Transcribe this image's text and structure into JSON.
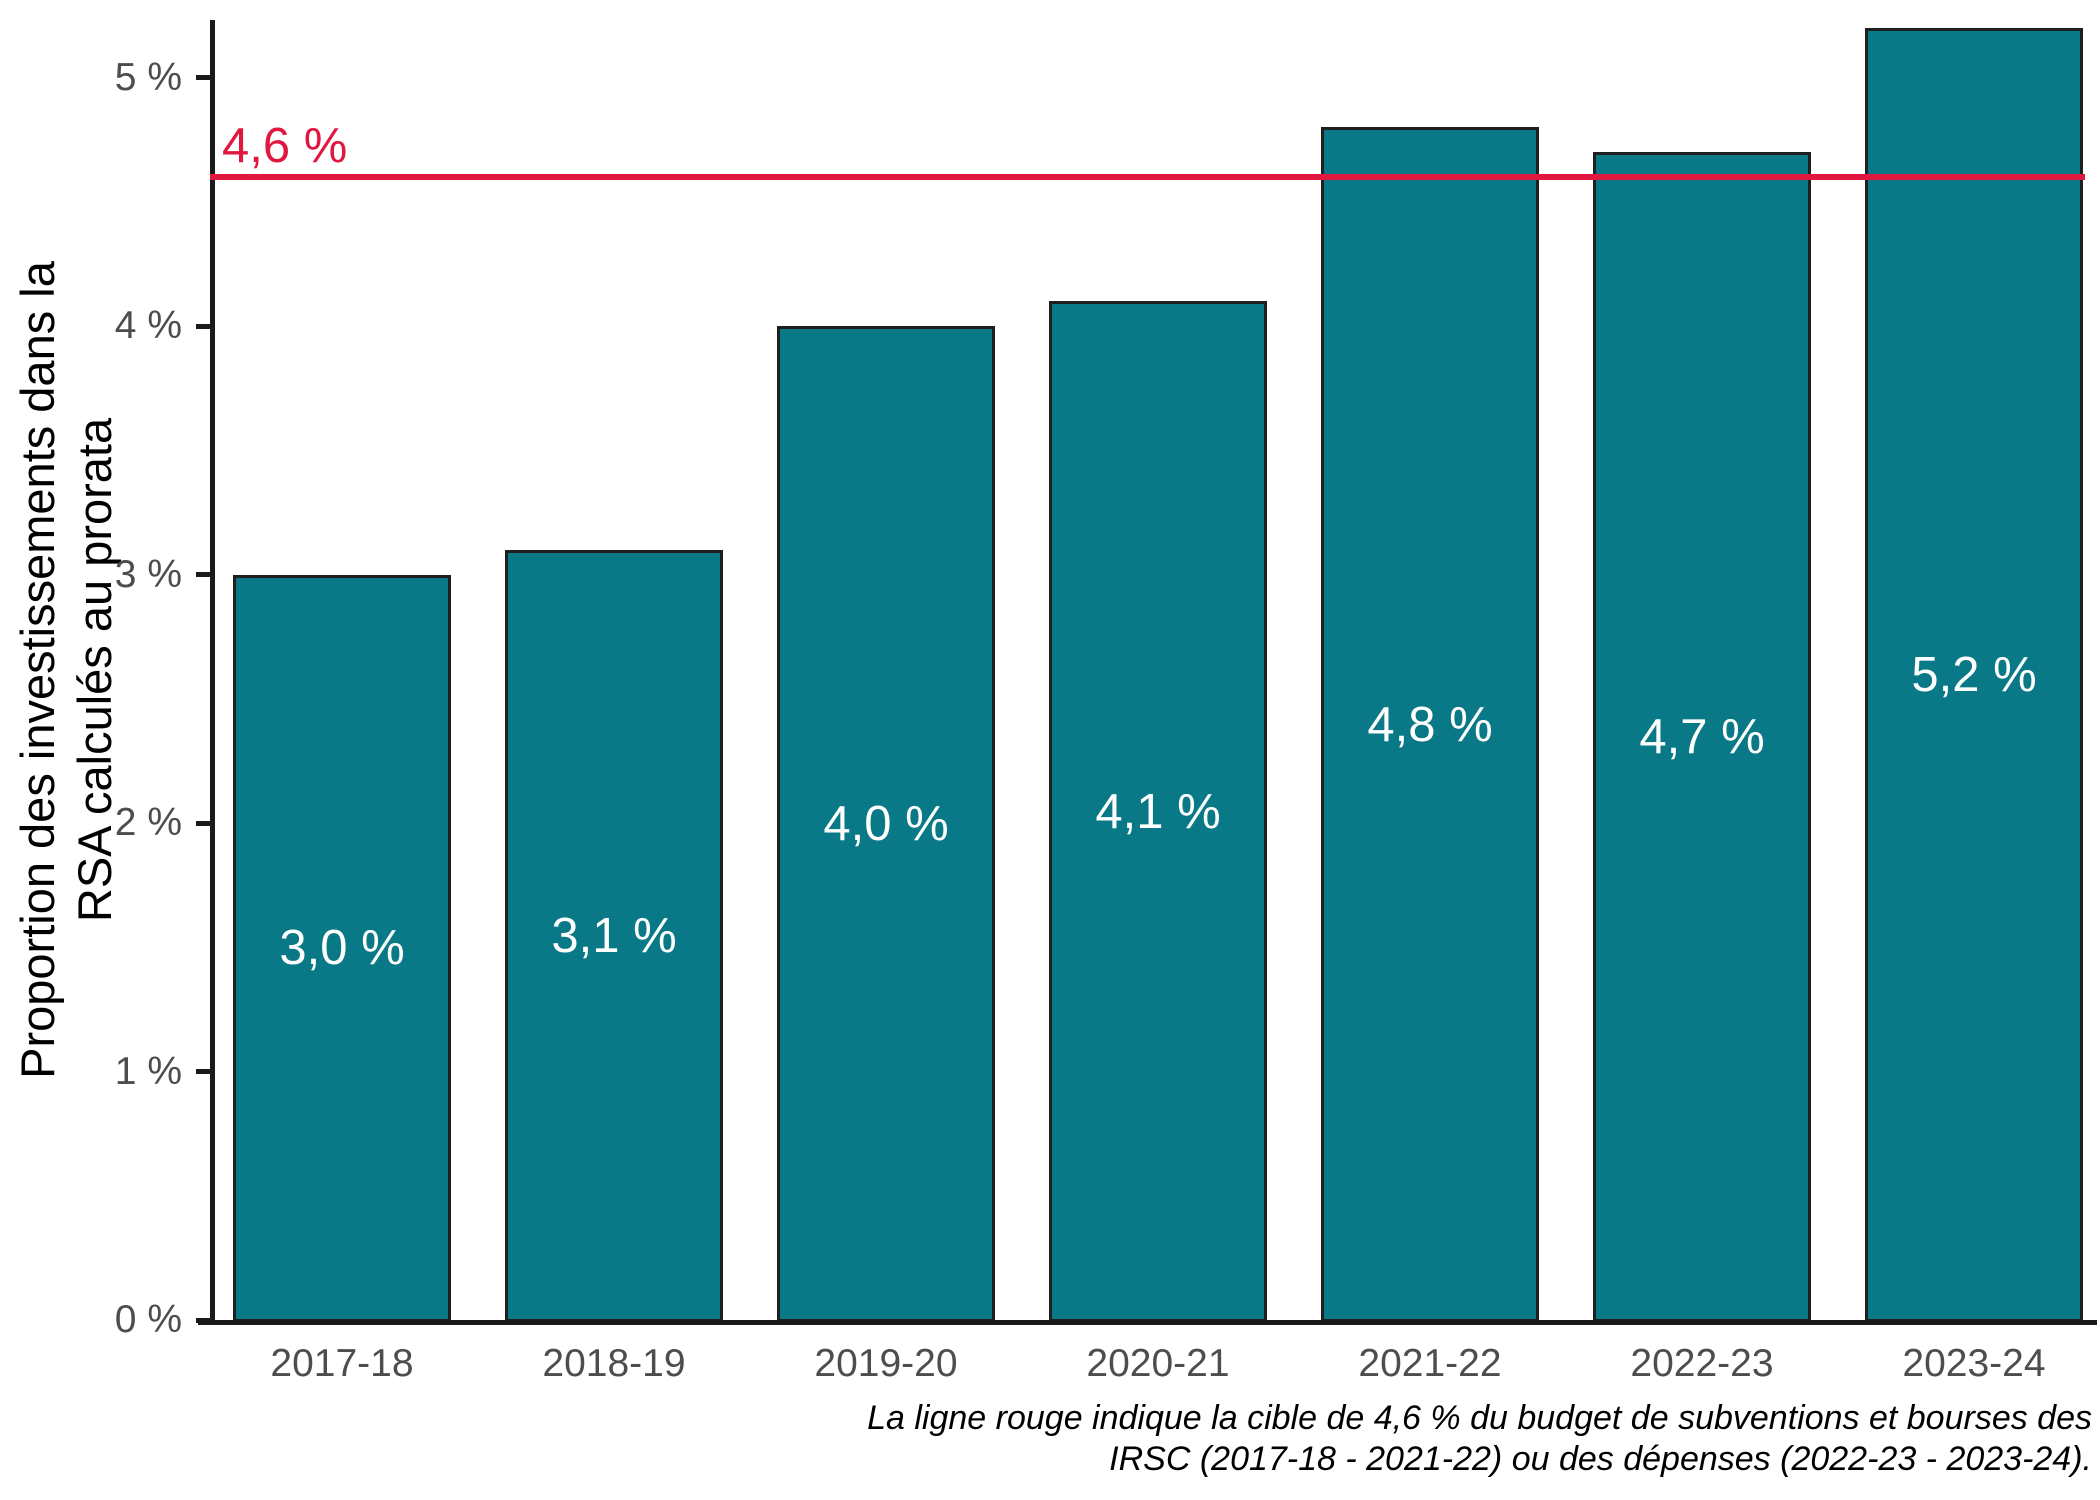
{
  "chart_data": {
    "type": "bar",
    "title": "",
    "categories": [
      "2017-18",
      "2018-19",
      "2019-20",
      "2020-21",
      "2021-22",
      "2022-23",
      "2023-24"
    ],
    "values": [
      3.0,
      3.1,
      4.0,
      4.1,
      4.8,
      4.7,
      5.2
    ],
    "bar_labels": [
      "3,0 %",
      "3,1 %",
      "4,0 %",
      "4,1 %",
      "4,8 %",
      "4,7 %",
      "5,2 %"
    ],
    "xlabel": "",
    "ylabel_line1": "Proportion des investissements dans la",
    "ylabel_line2": "RSA calculés au prorata",
    "y_ticks": [
      {
        "value": 0,
        "label": "0 %"
      },
      {
        "value": 1,
        "label": "1 %"
      },
      {
        "value": 2,
        "label": "2 %"
      },
      {
        "value": 3,
        "label": "3 %"
      },
      {
        "value": 4,
        "label": "4 %"
      },
      {
        "value": 5,
        "label": "5 %"
      }
    ],
    "ylim": [
      0,
      5.25
    ],
    "grid": "off",
    "legend": "none",
    "reference_line": {
      "value": 4.6,
      "label": "4,6 %"
    },
    "caption_line1": "La ligne rouge indique la cible de 4,6 % du budget de subventions et bourses des",
    "caption_line2": "IRSC (2017-18 - 2021-22) ou des dépenses (2022-23 - 2023-24).",
    "colors": {
      "bar_fill": "#0a7987",
      "bar_border": "#1f1f1f",
      "bar_label_text": "#ffffff",
      "reference_line": "#e0173f",
      "tick_text": "#4d4d4d",
      "axis_line": "#1a1a1a",
      "title_text": "#000000"
    }
  }
}
